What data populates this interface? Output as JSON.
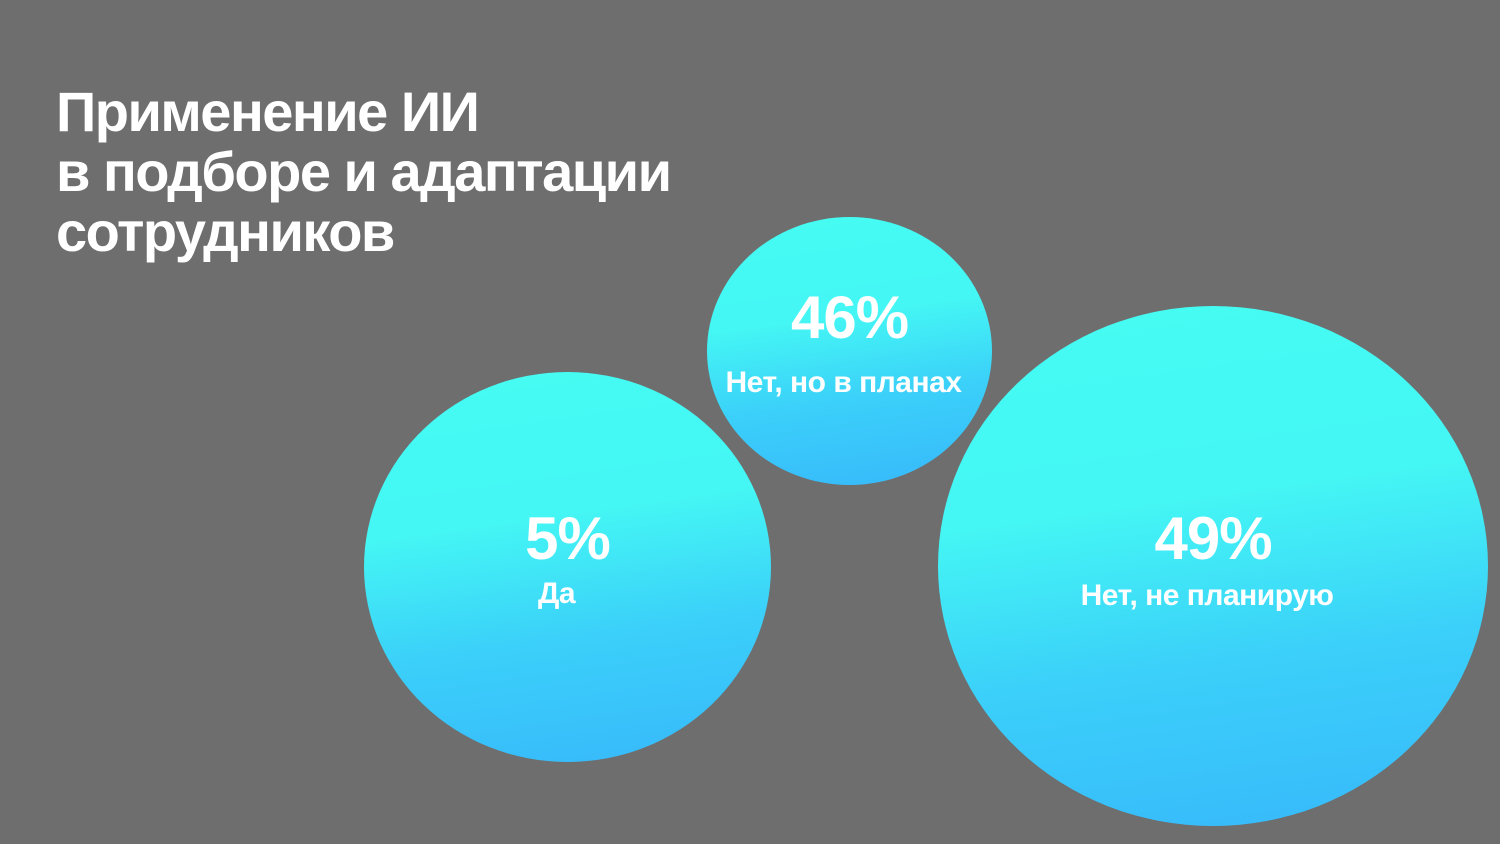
{
  "slide": {
    "title_lines": [
      "Применение ИИ",
      "в подборе и адаптации",
      "сотрудников"
    ]
  },
  "chart_data": {
    "type": "bubble",
    "title": "Применение ИИ в подборе и адаптации сотрудников",
    "categories": [
      "Да",
      "Нет, но в планах",
      "Нет, не планирую"
    ],
    "values": [
      5,
      46,
      49
    ],
    "unit": "%",
    "labels": [
      "5%",
      "46%",
      "49%"
    ],
    "colors": {
      "gradient_top": "#45fcf2",
      "gradient_bottom": "#37b8fb",
      "background": "#6e6e6e",
      "text": "#ffffff"
    }
  }
}
